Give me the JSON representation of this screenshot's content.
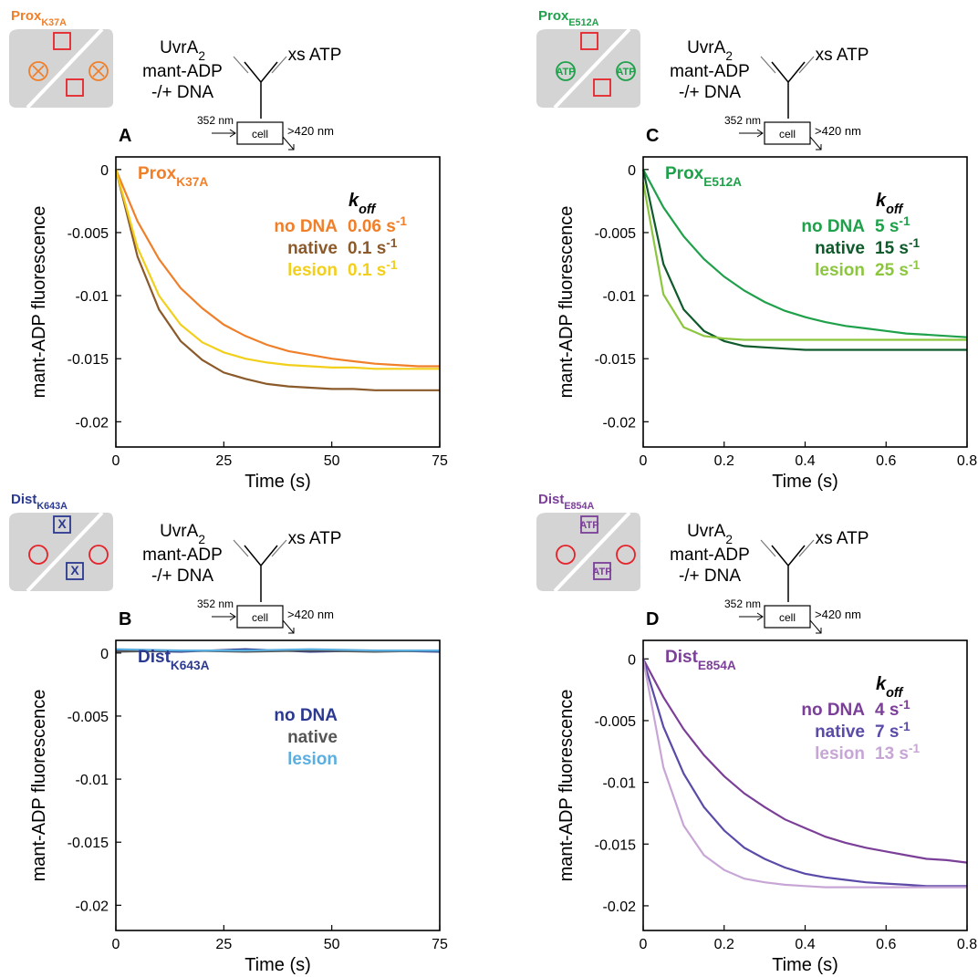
{
  "chart_data": [
    {
      "type": "line",
      "panel": "A",
      "mutant": "Prox",
      "mutant_sub": "K37A",
      "site_label": null,
      "protein": "UvrA",
      "protein_sub": "2",
      "mix_lines": [
        "mant-ADP",
        "-/+ DNA"
      ],
      "syringe": "xs ATP",
      "excitation": "352 nm",
      "cell": "cell",
      "emission": ">420 nm",
      "xlabel": "Time (s)",
      "ylabel": "mant-ADP fluorescence",
      "legend_header": "k",
      "legend_header_sub": "off",
      "x": [
        0,
        5,
        10,
        15,
        20,
        25,
        30,
        35,
        40,
        45,
        50,
        55,
        60,
        65,
        70,
        75
      ],
      "xlim": [
        0,
        75
      ],
      "xticks": [
        0,
        25,
        50,
        75
      ],
      "ylim": [
        -0.022,
        0.001
      ],
      "yticks": [
        0,
        -0.005,
        -0.01,
        -0.015,
        -0.02
      ],
      "series": [
        {
          "name": "no DNA",
          "color": "#f07f2a",
          "rate": "0.06 s",
          "rate_exp": "-1",
          "values": [
            0,
            -0.0041,
            -0.0071,
            -0.0094,
            -0.011,
            -0.0123,
            -0.0132,
            -0.0139,
            -0.0144,
            -0.0147,
            -0.015,
            -0.0152,
            -0.0154,
            -0.0155,
            -0.0156,
            -0.0156
          ]
        },
        {
          "name": "native",
          "color": "#8b5a2b",
          "rate": "0.1 s",
          "rate_exp": "-1",
          "values": [
            0,
            -0.0069,
            -0.0111,
            -0.0136,
            -0.0151,
            -0.0161,
            -0.0166,
            -0.017,
            -0.0172,
            -0.0173,
            -0.0174,
            -0.0174,
            -0.0175,
            -0.0175,
            -0.0175,
            -0.0175
          ]
        },
        {
          "name": "lesion",
          "color": "#f2cf1a",
          "rate": "0.1 s",
          "rate_exp": "-1",
          "values": [
            0,
            -0.0062,
            -0.01,
            -0.0123,
            -0.0137,
            -0.0145,
            -0.015,
            -0.0153,
            -0.0155,
            -0.0156,
            -0.0157,
            -0.0157,
            -0.0158,
            -0.0158,
            -0.0158,
            -0.0158
          ]
        }
      ]
    },
    {
      "type": "line",
      "panel": "C",
      "mutant": "Prox",
      "mutant_sub": "E512A",
      "site_label": "ATP",
      "protein": "UvrA",
      "protein_sub": "2",
      "mix_lines": [
        "mant-ADP",
        "-/+ DNA"
      ],
      "syringe": "xs ATP",
      "excitation": "352 nm",
      "cell": "cell",
      "emission": ">420 nm",
      "xlabel": "Time (s)",
      "ylabel": "mant-ADP fluorescence",
      "legend_header": "k",
      "legend_header_sub": "off",
      "x": [
        0,
        0.05,
        0.1,
        0.15,
        0.2,
        0.25,
        0.3,
        0.35,
        0.4,
        0.45,
        0.5,
        0.55,
        0.6,
        0.65,
        0.7,
        0.75,
        0.8
      ],
      "xlim": [
        0,
        0.8
      ],
      "xticks": [
        0,
        0.2,
        0.4,
        0.6,
        0.8
      ],
      "ylim": [
        -0.022,
        0.001
      ],
      "yticks": [
        0,
        -0.005,
        -0.01,
        -0.015,
        -0.02
      ],
      "series": [
        {
          "name": "no DNA",
          "color": "#1fa04a",
          "rate": "5 s",
          "rate_exp": "-1",
          "values": [
            0,
            -0.003,
            -0.0053,
            -0.0071,
            -0.0085,
            -0.0096,
            -0.0105,
            -0.0112,
            -0.0117,
            -0.0121,
            -0.0124,
            -0.0126,
            -0.0128,
            -0.013,
            -0.0131,
            -0.0132,
            -0.0133
          ]
        },
        {
          "name": "native",
          "color": "#0e5a2a",
          "rate": "15 s",
          "rate_exp": "-1",
          "values": [
            0,
            -0.0075,
            -0.0111,
            -0.0128,
            -0.0136,
            -0.014,
            -0.0141,
            -0.0142,
            -0.0143,
            -0.0143,
            -0.0143,
            -0.0143,
            -0.0143,
            -0.0143,
            -0.0143,
            -0.0143,
            -0.0143
          ]
        },
        {
          "name": "lesion",
          "color": "#8cc63f",
          "rate": "25 s",
          "rate_exp": "-1",
          "values": [
            -0.001,
            -0.0099,
            -0.0125,
            -0.0132,
            -0.0134,
            -0.0135,
            -0.0135,
            -0.0135,
            -0.0135,
            -0.0135,
            -0.0135,
            -0.0135,
            -0.0135,
            -0.0135,
            -0.0135,
            -0.0135,
            -0.0135
          ]
        }
      ]
    },
    {
      "type": "line",
      "panel": "B",
      "mutant": "Dist",
      "mutant_sub": "K643A",
      "site_label": "X",
      "protein": "UvrA",
      "protein_sub": "2",
      "mix_lines": [
        "mant-ADP",
        "-/+ DNA"
      ],
      "syringe": "xs ATP",
      "excitation": "352 nm",
      "cell": "cell",
      "emission": ">420 nm",
      "xlabel": "Time (s)",
      "ylabel": "mant-ADP fluorescence",
      "legend_header": null,
      "legend_header_sub": null,
      "x": [
        0,
        15,
        30,
        45,
        60,
        75
      ],
      "xlim": [
        0,
        75
      ],
      "xticks": [
        0,
        25,
        50,
        75
      ],
      "ylim": [
        -0.022,
        0.001
      ],
      "yticks": [
        0,
        -0.005,
        -0.01,
        -0.015,
        -0.02
      ],
      "series": [
        {
          "name": "no DNA",
          "color": "#2b3990",
          "rate": null,
          "rate_exp": null,
          "values": [
            0.0002,
            0.0001,
            0.0003,
            0.0001,
            0.0002,
            0.0001
          ]
        },
        {
          "name": "native",
          "color": "#555555",
          "rate": null,
          "rate_exp": null,
          "values": [
            0.0001,
            0.0002,
            0.0001,
            0.0002,
            0.0001,
            0.0002
          ]
        },
        {
          "name": "lesion",
          "color": "#5aaee0",
          "rate": null,
          "rate_exp": null,
          "values": [
            0.0003,
            0.0002,
            0.0002,
            0.0003,
            0.0002,
            0.0002
          ]
        }
      ]
    },
    {
      "type": "line",
      "panel": "D",
      "mutant": "Dist",
      "mutant_sub": "E854A",
      "site_label": "ATP",
      "protein": "UvrA",
      "protein_sub": "2",
      "mix_lines": [
        "mant-ADP",
        "-/+ DNA"
      ],
      "syringe": "xs ATP",
      "excitation": "352 nm",
      "cell": "cell",
      "emission": ">420 nm",
      "xlabel": "Time (s)",
      "ylabel": "mant-ADP fluorescence",
      "legend_header": "k",
      "legend_header_sub": "off",
      "x": [
        0,
        0.05,
        0.1,
        0.15,
        0.2,
        0.25,
        0.3,
        0.35,
        0.4,
        0.45,
        0.5,
        0.55,
        0.6,
        0.65,
        0.7,
        0.75,
        0.8
      ],
      "xlim": [
        0,
        0.8
      ],
      "xticks": [
        0,
        0.2,
        0.4,
        0.6,
        0.8
      ],
      "ylim": [
        -0.022,
        0.0015
      ],
      "yticks": [
        0,
        -0.005,
        -0.01,
        -0.015,
        -0.02
      ],
      "series": [
        {
          "name": "no DNA",
          "color": "#7b3f98",
          "rate": "4 s",
          "rate_exp": "-1",
          "values": [
            0,
            -0.0031,
            -0.0057,
            -0.0078,
            -0.0095,
            -0.0109,
            -0.012,
            -0.013,
            -0.0137,
            -0.0144,
            -0.0149,
            -0.0153,
            -0.0156,
            -0.0159,
            -0.0162,
            -0.0163,
            -0.0165
          ]
        },
        {
          "name": "native",
          "color": "#5b4aa8",
          "rate": "7 s",
          "rate_exp": "-1",
          "values": [
            0,
            -0.0055,
            -0.0093,
            -0.012,
            -0.0139,
            -0.0153,
            -0.0162,
            -0.0169,
            -0.0174,
            -0.0177,
            -0.0179,
            -0.0181,
            -0.0182,
            -0.0183,
            -0.0184,
            -0.0184,
            -0.0184
          ]
        },
        {
          "name": "lesion",
          "color": "#c7a6d6",
          "rate": "13 s",
          "rate_exp": "-1",
          "values": [
            0,
            -0.0088,
            -0.0135,
            -0.0159,
            -0.0171,
            -0.0178,
            -0.0181,
            -0.0183,
            -0.0184,
            -0.0185,
            -0.0185,
            -0.0185,
            -0.0185,
            -0.0185,
            -0.0185,
            -0.0185,
            -0.0185
          ]
        }
      ]
    }
  ]
}
